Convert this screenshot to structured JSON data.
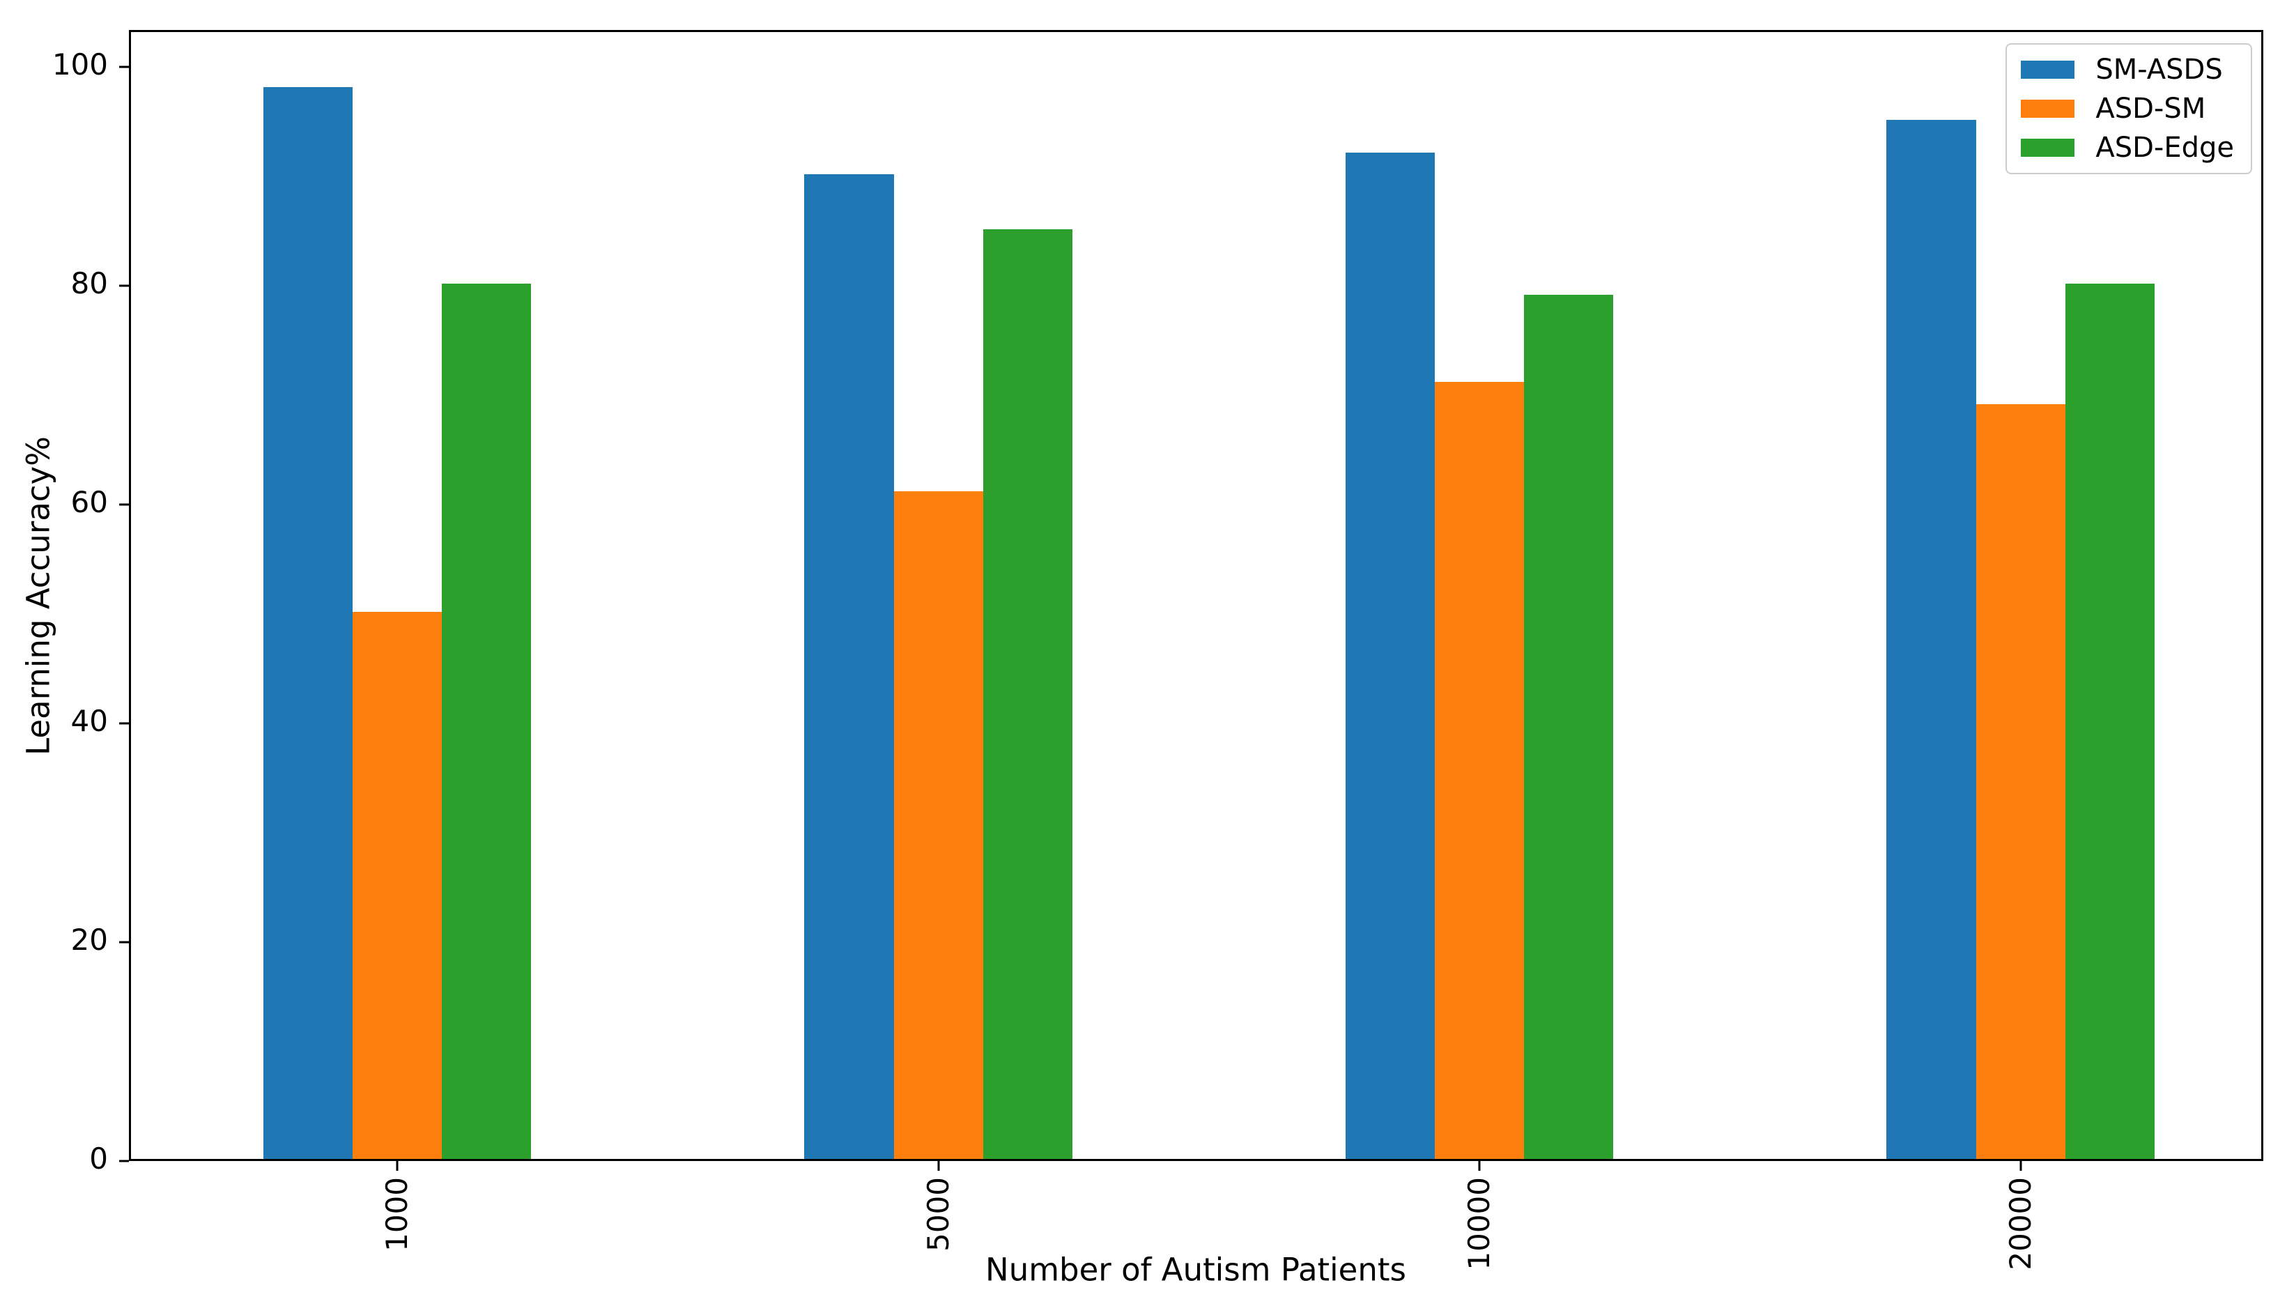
{
  "figure": {
    "background": "#ffffff",
    "spine_color": "#000000",
    "text_color": "#000000",
    "legend_border_color": "#cccccc"
  },
  "chart_data": {
    "type": "bar",
    "title": "",
    "xlabel": "Number of Autism Patients",
    "ylabel": "Learning Accuracy%",
    "categories": [
      "1000",
      "5000",
      "10000",
      "20000"
    ],
    "series": [
      {
        "name": "SM-ASDS",
        "color": "#1f77b4",
        "values": [
          98,
          90,
          92,
          95
        ]
      },
      {
        "name": "ASD-SM",
        "color": "#ff7f0e",
        "values": [
          50,
          61,
          71,
          69
        ]
      },
      {
        "name": "ASD-Edge",
        "color": "#2ca02c",
        "values": [
          80,
          85,
          79,
          80
        ]
      }
    ],
    "y_ticks": [
      0,
      20,
      40,
      60,
      80,
      100
    ],
    "ylim": [
      0,
      103
    ],
    "grid": false,
    "legend_position": "upper right",
    "x_tick_rotation": 90
  }
}
